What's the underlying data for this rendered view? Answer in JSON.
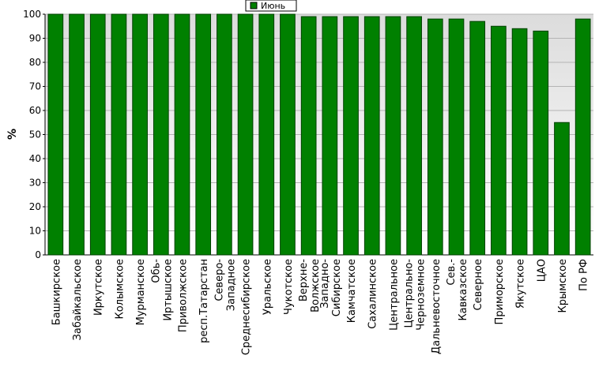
{
  "chart_data": {
    "type": "bar",
    "legend": "Июнь",
    "ylabel": "%",
    "categories": [
      "Башкирское",
      "Забайкальское",
      "Иркутское",
      "Колымское",
      "Мурманское",
      "Обь-\nИртышское",
      "Приволжское",
      "респ.Татарстан",
      "Северо-\nЗападное",
      "Среднесибирское",
      "Уральское",
      "Чукотское",
      "Верхне-\nВолжское",
      "Западно-\nСибирское",
      "Камчатское",
      "Сахалинское",
      "Центральное",
      "Центрально-\nЧерноземное",
      "Дальневосточное",
      "Сев.-\nКавказское",
      "Северное",
      "Приморское",
      "Якутское",
      "ЦАО",
      "Крымское",
      "По РФ"
    ],
    "values": [
      100,
      100,
      100,
      100,
      100,
      100,
      100,
      100,
      100,
      100,
      100,
      100,
      99,
      99,
      99,
      99,
      99,
      99,
      98,
      98,
      97,
      95,
      94,
      93,
      55,
      98
    ],
    "color": "#008000",
    "ylim": [
      0,
      100
    ],
    "yticks": [
      0,
      10,
      20,
      30,
      40,
      50,
      60,
      70,
      80,
      90,
      100
    ],
    "grid": true
  }
}
